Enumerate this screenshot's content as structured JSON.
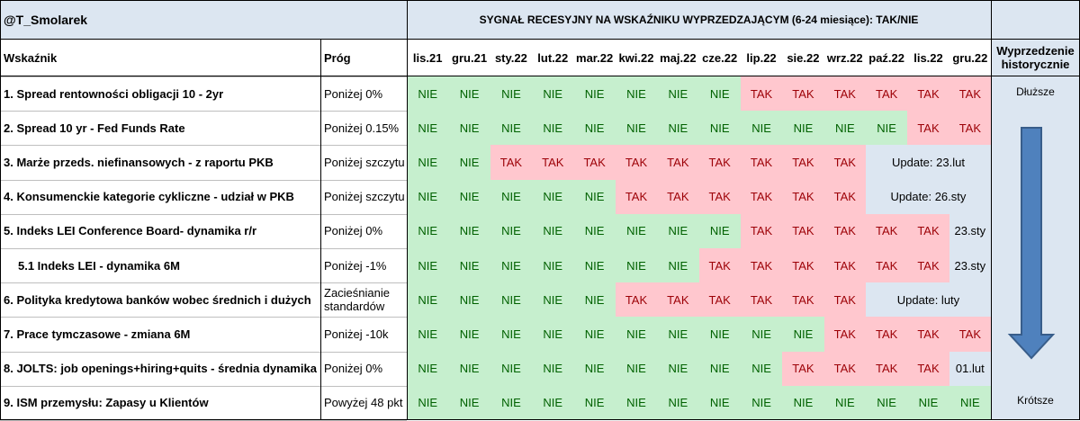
{
  "header": {
    "author": "@T_Smolarek",
    "title": "SYGNAŁ RECESYJNY NA WSKAŹNIKU WYPRZEDZAJĄCYM (6-24 miesiące): TAK/NIE",
    "col_indicator": "Wskaźnik",
    "col_threshold": "Próg",
    "col_history": "Wyprzedzenie historycznie"
  },
  "months": [
    "lis.21",
    "gru.21",
    "sty.22",
    "lut.22",
    "mar.22",
    "kwi.22",
    "maj.22",
    "cze.22",
    "lip.22",
    "sie.22",
    "wrz.22",
    "paź.22",
    "lis.22",
    "gru.22"
  ],
  "rows": [
    {
      "label": "1. Spread rentowności obligacji 10 - 2yr",
      "threshold": "Poniżej 0%",
      "cells": [
        "NIE",
        "NIE",
        "NIE",
        "NIE",
        "NIE",
        "NIE",
        "NIE",
        "NIE",
        "TAK",
        "TAK",
        "TAK",
        "TAK",
        "TAK",
        "TAK"
      ],
      "note": ""
    },
    {
      "label": "2. Spread 10 yr - Fed Funds Rate",
      "threshold": "Poniżej 0.15%",
      "cells": [
        "NIE",
        "NIE",
        "NIE",
        "NIE",
        "NIE",
        "NIE",
        "NIE",
        "NIE",
        "NIE",
        "NIE",
        "NIE",
        "NIE",
        "TAK",
        "TAK"
      ],
      "note": ""
    },
    {
      "label": "3. Marże przeds. niefinansowych - z raportu PKB",
      "threshold": "Poniżej szczytu",
      "cells": [
        "NIE",
        "NIE",
        "TAK",
        "TAK",
        "TAK",
        "TAK",
        "TAK",
        "TAK",
        "TAK",
        "TAK",
        "TAK"
      ],
      "note": "Update: 23.lut"
    },
    {
      "label": "4. Konsumenckie kategorie cykliczne - udział w PKB",
      "threshold": "Poniżej szczytu",
      "cells": [
        "NIE",
        "NIE",
        "NIE",
        "NIE",
        "NIE",
        "TAK",
        "TAK",
        "TAK",
        "TAK",
        "TAK",
        "TAK"
      ],
      "note": "Update: 26.sty"
    },
    {
      "label": "5. Indeks LEI Conference Board- dynamika r/r",
      "threshold": "Poniżej 0%",
      "cells": [
        "NIE",
        "NIE",
        "NIE",
        "NIE",
        "NIE",
        "NIE",
        "NIE",
        "NIE",
        "TAK",
        "TAK",
        "TAK",
        "TAK",
        "TAK"
      ],
      "note": "23.sty"
    },
    {
      "label": "5.1 Indeks LEI - dynamika 6M",
      "threshold": "Poniżej -1%",
      "cells": [
        "NIE",
        "NIE",
        "NIE",
        "NIE",
        "NIE",
        "NIE",
        "NIE",
        "TAK",
        "TAK",
        "TAK",
        "TAK",
        "TAK",
        "TAK"
      ],
      "note": "23.sty"
    },
    {
      "label": "6. Polityka kredytowa banków wobec średnich i dużych",
      "threshold": "Zacieśnianie standardów",
      "cells": [
        "NIE",
        "NIE",
        "NIE",
        "NIE",
        "NIE",
        "TAK",
        "TAK",
        "TAK",
        "TAK",
        "TAK",
        "TAK"
      ],
      "note": "Update: luty"
    },
    {
      "label": "7. Prace tymczasowe - zmiana 6M",
      "threshold": "Poniżej -10k",
      "cells": [
        "NIE",
        "NIE",
        "NIE",
        "NIE",
        "NIE",
        "NIE",
        "NIE",
        "NIE",
        "NIE",
        "NIE",
        "TAK",
        "TAK",
        "TAK",
        "TAK"
      ],
      "note": ""
    },
    {
      "label": "8. JOLTS: job openings+hiring+quits - średnia dynamika",
      "threshold": "Poniżej 0%",
      "cells": [
        "NIE",
        "NIE",
        "NIE",
        "NIE",
        "NIE",
        "NIE",
        "NIE",
        "NIE",
        "NIE",
        "TAK",
        "TAK",
        "TAK",
        "TAK"
      ],
      "note": "01.lut"
    },
    {
      "label": "9. ISM przemysłu: Zapasy u Klientów",
      "threshold": "Powyżej 48 pkt",
      "cells": [
        "NIE",
        "NIE",
        "NIE",
        "NIE",
        "NIE",
        "NIE",
        "NIE",
        "NIE",
        "NIE",
        "NIE",
        "NIE",
        "NIE",
        "NIE",
        "NIE"
      ],
      "note": ""
    }
  ],
  "history": {
    "top": "Dłuższe",
    "bottom": "Krótsze"
  },
  "colors": {
    "nie_bg": "#c6efce",
    "nie_text": "#006100",
    "tak_bg": "#ffc7ce",
    "tak_text": "#9c0006",
    "header_bg": "#dce6f1",
    "arrow": "#4f81bd"
  }
}
